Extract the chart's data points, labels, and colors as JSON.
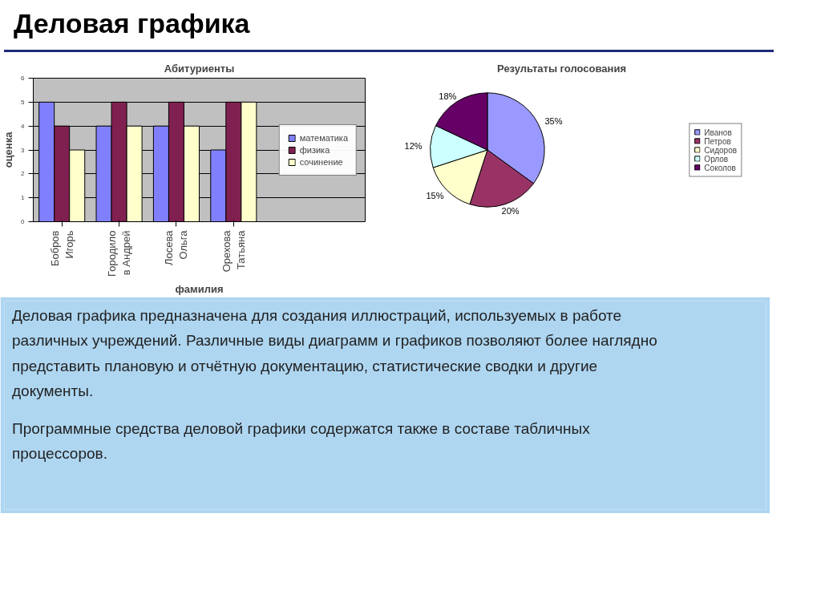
{
  "chart_data": [
    {
      "type": "bar",
      "title": "Абитуриенты",
      "xlabel": "фамилия",
      "ylabel": "оценка",
      "categories": [
        "Бобров\nИгорь",
        "Городило\nв Андрей",
        "Лосева\nОльга",
        "Орехова\nТатьяна"
      ],
      "series": [
        {
          "name": "математика",
          "color": "#8080ff",
          "values": [
            5,
            4,
            4,
            3
          ]
        },
        {
          "name": "физика",
          "color": "#802050",
          "values": [
            4,
            5,
            5,
            5
          ]
        },
        {
          "name": "сочинение",
          "color": "#ffffcc",
          "values": [
            3,
            4,
            4,
            5
          ]
        }
      ],
      "ylim": [
        0,
        6
      ],
      "yticks": [
        0,
        1,
        2,
        3,
        4,
        5,
        6
      ],
      "grid": "y",
      "legend": "right"
    },
    {
      "type": "pie",
      "title": "Результаты голосования",
      "categories": [
        "Иванов",
        "Петров",
        "Сидоров",
        "Орлов",
        "Соколов"
      ],
      "values": [
        35,
        20,
        15,
        12,
        18
      ],
      "colors": [
        "#9999ff",
        "#993366",
        "#ffffcc",
        "#ccffff",
        "#660066"
      ],
      "value_labels": [
        "35%",
        "20%",
        "15%",
        "12%",
        "18%"
      ],
      "legend": "right"
    },
    {
      "type": "other",
      "title": "Деловая графика",
      "annotations": [
        "Деловая графика предназначена для создания иллюстраций, используемых в работе различных учреждений. Различные виды диаграмм и графиков позволяют более наглядно представить плановую и отчётную документацию, статистические сводки и другие документы.",
        "Программные средства деловой графики содержатся также в составе табличных процессоров."
      ]
    }
  ]
}
